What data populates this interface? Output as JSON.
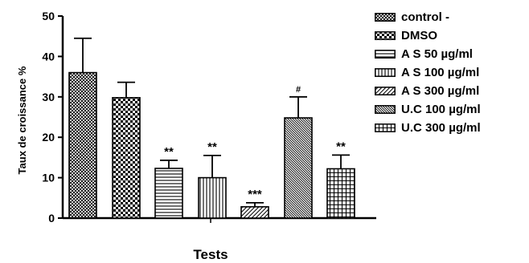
{
  "chart_data": {
    "type": "bar",
    "title": "",
    "ylabel": "Taux de croissance %",
    "xlabel": "Tests",
    "ylim": [
      0,
      50
    ],
    "yticks": [
      0,
      10,
      20,
      30,
      40,
      50
    ],
    "grid": false,
    "legend_position": "right",
    "bars": [
      {
        "name": "control -",
        "value": 36,
        "error": 8.5,
        "significance": "",
        "pattern": "fine-cross"
      },
      {
        "name": "DMSO",
        "value": 29.8,
        "error": 3.8,
        "significance": "",
        "pattern": "checker"
      },
      {
        "name": "A S 50 µg/ml",
        "value": 12.3,
        "error": 2.0,
        "significance": "**",
        "pattern": "horizontal-lines"
      },
      {
        "name": "A S 100 µg/ml",
        "value": 10,
        "error": 5.5,
        "significance": "**",
        "pattern": "vertical-lines"
      },
      {
        "name": "A S 300 µg/ml",
        "value": 2.8,
        "error": 1.0,
        "significance": "***",
        "pattern": "diagonal-lines"
      },
      {
        "name": "U.C 100 µg/ml",
        "value": 24.8,
        "error": 5.2,
        "significance": "#",
        "pattern": "dense-diagonal"
      },
      {
        "name": "U.C 300 µg/ml",
        "value": 12.2,
        "error": 3.4,
        "significance": "**",
        "pattern": "grid"
      }
    ],
    "colors": {
      "fill": "#ffffff",
      "pattern": "#000000",
      "axis": "#000000"
    }
  }
}
